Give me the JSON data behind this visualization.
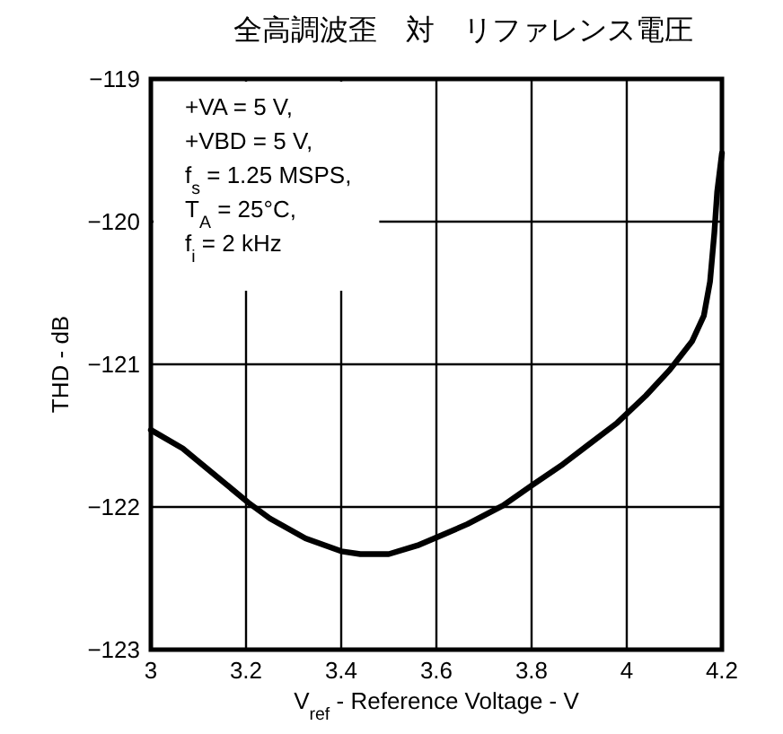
{
  "chart_data": {
    "type": "line",
    "title": "全高調波歪　対　リファレンス電圧",
    "xlabel": "V$_{ref}$ - Reference Voltage - V",
    "ylabel": "THD - dB",
    "xlim": [
      3,
      4.2
    ],
    "xticks": [
      3,
      3.2,
      3.4,
      3.6,
      3.8,
      4,
      4.2
    ],
    "ylim": [
      -123,
      -119
    ],
    "yticks": [
      -123,
      -122,
      -121,
      -120,
      -119
    ],
    "grid": true,
    "annotations": [
      "+VA = 5 V,",
      "+VBD = 5 V,",
      "f$_{s}$ = 1.25 MSPS,",
      "T$_{A}$ = 25°C,",
      "f$_{i}$ = 2 kHz"
    ],
    "series": [
      {
        "color": "#000000",
        "x": [
          3.0,
          3.067,
          3.136,
          3.205,
          3.25,
          3.325,
          3.4,
          3.44,
          3.5,
          3.56,
          3.61,
          3.665,
          3.74,
          3.8,
          3.866,
          3.917,
          3.98,
          4.04,
          4.09,
          4.137,
          4.162,
          4.175,
          4.184,
          4.19,
          4.2
        ],
        "values": [
          -121.46,
          -121.59,
          -121.78,
          -121.97,
          -122.08,
          -122.22,
          -122.31,
          -122.33,
          -122.33,
          -122.27,
          -122.2,
          -122.12,
          -121.99,
          -121.85,
          -121.7,
          -121.57,
          -121.41,
          -121.22,
          -121.04,
          -120.84,
          -120.66,
          -120.42,
          -120.08,
          -119.79,
          -119.52
        ]
      }
    ]
  }
}
